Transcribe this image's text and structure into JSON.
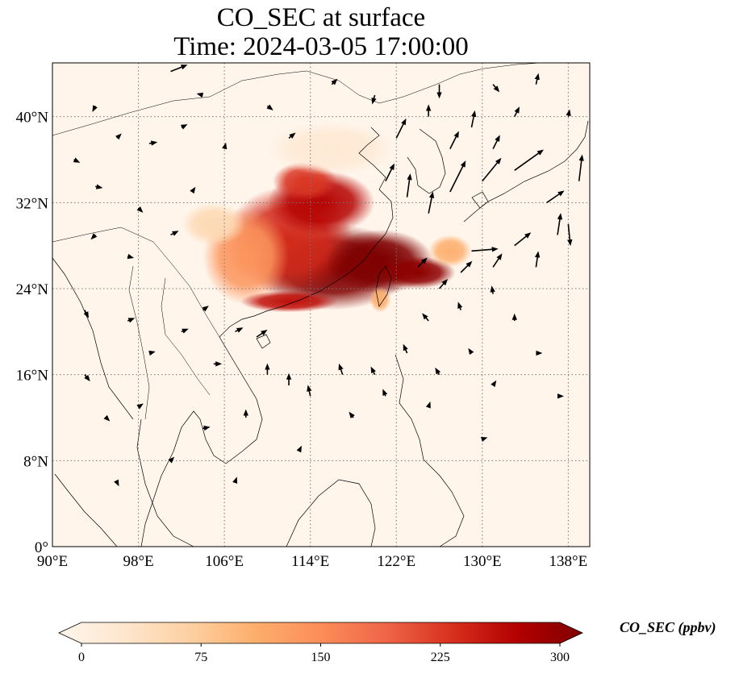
{
  "figure": {
    "title_line1": "CO_SEC at surface",
    "title_line2": "Time: 2024-03-05 17:00:00"
  },
  "map": {
    "lon_range": [
      90,
      140
    ],
    "lat_range": [
      0,
      45
    ],
    "lon_ticks": [
      {
        "value": 90,
        "label": "90°E"
      },
      {
        "value": 98,
        "label": "98°E"
      },
      {
        "value": 106,
        "label": "106°E"
      },
      {
        "value": 114,
        "label": "114°E"
      },
      {
        "value": 122,
        "label": "122°E"
      },
      {
        "value": 130,
        "label": "130°E"
      },
      {
        "value": 138,
        "label": "138°E"
      }
    ],
    "lat_ticks": [
      {
        "value": 0,
        "label": "0°"
      },
      {
        "value": 8,
        "label": "8°N"
      },
      {
        "value": 16,
        "label": "16°N"
      },
      {
        "value": 24,
        "label": "24°N"
      },
      {
        "value": 32,
        "label": "32°N"
      },
      {
        "value": 40,
        "label": "40°N"
      }
    ],
    "gridlines": true,
    "background_color": "#fff5eb",
    "plume_centers": [
      {
        "lon": 116.0,
        "lat": 26.0,
        "rlon": 7.5,
        "rlat": 4.0,
        "value": 320
      },
      {
        "lon": 112.0,
        "lat": 28.5,
        "rlon": 6.0,
        "rlat": 5.0,
        "value": 230
      },
      {
        "lon": 120.5,
        "lat": 26.5,
        "rlon": 5.0,
        "rlat": 3.0,
        "value": 320
      },
      {
        "lon": 115.0,
        "lat": 32.0,
        "rlon": 5.0,
        "rlat": 3.0,
        "value": 260
      },
      {
        "lon": 113.5,
        "lat": 34.0,
        "rlon": 3.0,
        "rlat": 1.8,
        "value": 220
      },
      {
        "lon": 108.0,
        "lat": 27.0,
        "rlon": 4.0,
        "rlat": 4.5,
        "value": 140
      },
      {
        "lon": 124.0,
        "lat": 25.5,
        "rlon": 3.5,
        "rlat": 1.5,
        "value": 290
      },
      {
        "lon": 112.0,
        "lat": 22.8,
        "rlon": 4.5,
        "rlat": 1.0,
        "value": 250
      },
      {
        "lon": 116.0,
        "lat": 37.0,
        "rlon": 6.0,
        "rlat": 2.5,
        "value": 30
      },
      {
        "lon": 105.0,
        "lat": 30.0,
        "rlon": 3.0,
        "rlat": 2.0,
        "value": 60
      },
      {
        "lon": 127.0,
        "lat": 27.5,
        "rlon": 2.0,
        "rlat": 1.5,
        "value": 110
      },
      {
        "lon": 120.5,
        "lat": 23.0,
        "rlon": 1.0,
        "rlat": 1.2,
        "value": 110
      }
    ],
    "wind_arrows": [
      {
        "lon": 101,
        "lat": 44.2,
        "u": 1.5,
        "v": 0.6
      },
      {
        "lon": 110,
        "lat": 41,
        "u": 0.4,
        "v": -0.3
      },
      {
        "lon": 94,
        "lat": 41,
        "u": -0.2,
        "v": -0.4
      },
      {
        "lon": 99,
        "lat": 37.5,
        "u": 0.6,
        "v": 0.1
      },
      {
        "lon": 102,
        "lat": 39,
        "u": 0.4,
        "v": 0.2
      },
      {
        "lon": 106,
        "lat": 37,
        "u": 0.1,
        "v": 0.4
      },
      {
        "lon": 94,
        "lat": 33.5,
        "u": 0.5,
        "v": -0.1
      },
      {
        "lon": 98,
        "lat": 31.5,
        "u": 0.3,
        "v": -0.3
      },
      {
        "lon": 103,
        "lat": 33,
        "u": 0.2,
        "v": 0.3
      },
      {
        "lon": 94,
        "lat": 29,
        "u": -0.3,
        "v": -0.3
      },
      {
        "lon": 97,
        "lat": 27,
        "u": 0.4,
        "v": -0.1
      },
      {
        "lon": 101,
        "lat": 29,
        "u": 0.6,
        "v": 0.3
      },
      {
        "lon": 93,
        "lat": 22,
        "u": 0.3,
        "v": -0.6
      },
      {
        "lon": 97,
        "lat": 21,
        "u": 0.5,
        "v": 0.2
      },
      {
        "lon": 99,
        "lat": 18,
        "u": 0.4,
        "v": 0.1
      },
      {
        "lon": 102,
        "lat": 20,
        "u": 0.5,
        "v": 0.2
      },
      {
        "lon": 104,
        "lat": 22,
        "u": 0.4,
        "v": 0.3
      },
      {
        "lon": 105,
        "lat": 17,
        "u": 0.6,
        "v": 0.0
      },
      {
        "lon": 107,
        "lat": 20,
        "u": 0.6,
        "v": 0.3
      },
      {
        "lon": 109,
        "lat": 19.5,
        "u": 0.9,
        "v": 0.6
      },
      {
        "lon": 110,
        "lat": 16,
        "u": 0.0,
        "v": 0.9
      },
      {
        "lon": 112,
        "lat": 15,
        "u": 0.0,
        "v": 1.0
      },
      {
        "lon": 114,
        "lat": 14,
        "u": -0.2,
        "v": 0.9
      },
      {
        "lon": 117,
        "lat": 16,
        "u": -0.3,
        "v": 0.9
      },
      {
        "lon": 120,
        "lat": 16,
        "u": -0.3,
        "v": 0.6
      },
      {
        "lon": 108,
        "lat": 12,
        "u": 0.0,
        "v": 0.6
      },
      {
        "lon": 104,
        "lat": 11,
        "u": 0.5,
        "v": 0.1
      },
      {
        "lon": 98,
        "lat": 13,
        "u": 0.3,
        "v": 0.2
      },
      {
        "lon": 95,
        "lat": 12,
        "u": 0.2,
        "v": -0.2
      },
      {
        "lon": 93,
        "lat": 16,
        "u": 0.4,
        "v": -0.5
      },
      {
        "lon": 101,
        "lat": 8,
        "u": 0.2,
        "v": 0.2
      },
      {
        "lon": 96,
        "lat": 6,
        "u": 0.1,
        "v": -0.2
      },
      {
        "lon": 107,
        "lat": 6,
        "u": 0.1,
        "v": 0.3
      },
      {
        "lon": 113,
        "lat": 9,
        "u": 0.1,
        "v": 0.2
      },
      {
        "lon": 118,
        "lat": 12,
        "u": -0.3,
        "v": 0.4
      },
      {
        "lon": 121,
        "lat": 14,
        "u": -0.2,
        "v": 0.5
      },
      {
        "lon": 123,
        "lat": 18,
        "u": -0.3,
        "v": 0.7
      },
      {
        "lon": 125,
        "lat": 21,
        "u": -0.5,
        "v": 0.6
      },
      {
        "lon": 128,
        "lat": 22,
        "u": -0.2,
        "v": 0.6
      },
      {
        "lon": 131,
        "lat": 23.5,
        "u": -0.1,
        "v": 0.6
      },
      {
        "lon": 133,
        "lat": 21,
        "u": 0.0,
        "v": 0.5
      },
      {
        "lon": 129,
        "lat": 18,
        "u": -0.2,
        "v": 0.3
      },
      {
        "lon": 126,
        "lat": 16,
        "u": -0.3,
        "v": 0.5
      },
      {
        "lon": 125,
        "lat": 13,
        "u": 0.1,
        "v": 0.3
      },
      {
        "lon": 131,
        "lat": 15,
        "u": 0.2,
        "v": 0.3
      },
      {
        "lon": 135,
        "lat": 18,
        "u": 0.4,
        "v": 0.0
      },
      {
        "lon": 137,
        "lat": 14,
        "u": 0.4,
        "v": 0.0
      },
      {
        "lon": 130,
        "lat": 10,
        "u": 0.3,
        "v": 0.1
      },
      {
        "lon": 124,
        "lat": 26,
        "u": 0.8,
        "v": 0.8
      },
      {
        "lon": 126,
        "lat": 24,
        "u": 0.7,
        "v": 0.8
      },
      {
        "lon": 128,
        "lat": 25.5,
        "u": 1.0,
        "v": 1.0
      },
      {
        "lon": 129,
        "lat": 27.5,
        "u": 2.5,
        "v": 0.2
      },
      {
        "lon": 131,
        "lat": 26,
        "u": 0.8,
        "v": 1.2
      },
      {
        "lon": 133,
        "lat": 28,
        "u": 1.5,
        "v": 1.2
      },
      {
        "lon": 135,
        "lat": 26,
        "u": 0.2,
        "v": 1.4
      },
      {
        "lon": 137,
        "lat": 29,
        "u": 0.3,
        "v": 2.0
      },
      {
        "lon": 139,
        "lat": 34,
        "u": 0.3,
        "v": 2.5
      },
      {
        "lon": 138,
        "lat": 30,
        "u": 0.2,
        "v": -2.0
      },
      {
        "lon": 136,
        "lat": 32,
        "u": 1.6,
        "v": 1.1
      },
      {
        "lon": 133,
        "lat": 35,
        "u": 2.8,
        "v": 2.0
      },
      {
        "lon": 130,
        "lat": 34,
        "u": 1.8,
        "v": 2.2
      },
      {
        "lon": 127,
        "lat": 33,
        "u": 1.5,
        "v": 3.0
      },
      {
        "lon": 125,
        "lat": 31,
        "u": 0.4,
        "v": 2.0
      },
      {
        "lon": 123,
        "lat": 32.5,
        "u": 0.3,
        "v": 2.2
      },
      {
        "lon": 121,
        "lat": 34,
        "u": 0.8,
        "v": 1.6
      },
      {
        "lon": 122,
        "lat": 38,
        "u": 0.9,
        "v": 1.8
      },
      {
        "lon": 125,
        "lat": 40,
        "u": 0.0,
        "v": 1.0
      },
      {
        "lon": 127,
        "lat": 37,
        "u": 0.8,
        "v": 1.6
      },
      {
        "lon": 129,
        "lat": 39,
        "u": 0.3,
        "v": 1.5
      },
      {
        "lon": 131,
        "lat": 37,
        "u": 0.6,
        "v": 1.2
      },
      {
        "lon": 133,
        "lat": 40,
        "u": 0.4,
        "v": 0.8
      },
      {
        "lon": 135,
        "lat": 43,
        "u": 0.2,
        "v": 0.9
      },
      {
        "lon": 138,
        "lat": 40,
        "u": 0.1,
        "v": 0.5
      },
      {
        "lon": 131,
        "lat": 43,
        "u": 0.5,
        "v": -0.6
      },
      {
        "lon": 126,
        "lat": 43,
        "u": 0.0,
        "v": -1.2
      },
      {
        "lon": 120,
        "lat": 42,
        "u": -0.2,
        "v": -0.7
      },
      {
        "lon": 116,
        "lat": 43,
        "u": 0.4,
        "v": 0.4
      },
      {
        "lon": 112,
        "lat": 38,
        "u": 0.5,
        "v": 0.4
      },
      {
        "lon": 104,
        "lat": 42,
        "u": -0.4,
        "v": 0.1
      },
      {
        "lon": 92,
        "lat": 36,
        "u": 0.4,
        "v": -0.2
      },
      {
        "lon": 96,
        "lat": 38,
        "u": 0.3,
        "v": 0.3
      }
    ]
  },
  "colorbar": {
    "label": "CO_SEC (ppbv)",
    "vmin": 0,
    "vmax": 300,
    "extend": "both",
    "ticks": [
      {
        "value": 0,
        "label": "0"
      },
      {
        "value": 75,
        "label": "75"
      },
      {
        "value": 150,
        "label": "150"
      },
      {
        "value": 225,
        "label": "225"
      },
      {
        "value": 300,
        "label": "300"
      }
    ],
    "colormap_stops": [
      {
        "t": 0.0,
        "color": "#fff5eb"
      },
      {
        "t": 0.125,
        "color": "#fee6ce"
      },
      {
        "t": 0.25,
        "color": "#fdd0a2"
      },
      {
        "t": 0.375,
        "color": "#fdae6b"
      },
      {
        "t": 0.5,
        "color": "#fc8d59"
      },
      {
        "t": 0.625,
        "color": "#ef6548"
      },
      {
        "t": 0.75,
        "color": "#d7301f"
      },
      {
        "t": 0.875,
        "color": "#b30000"
      },
      {
        "t": 1.0,
        "color": "#7f0000"
      }
    ]
  }
}
